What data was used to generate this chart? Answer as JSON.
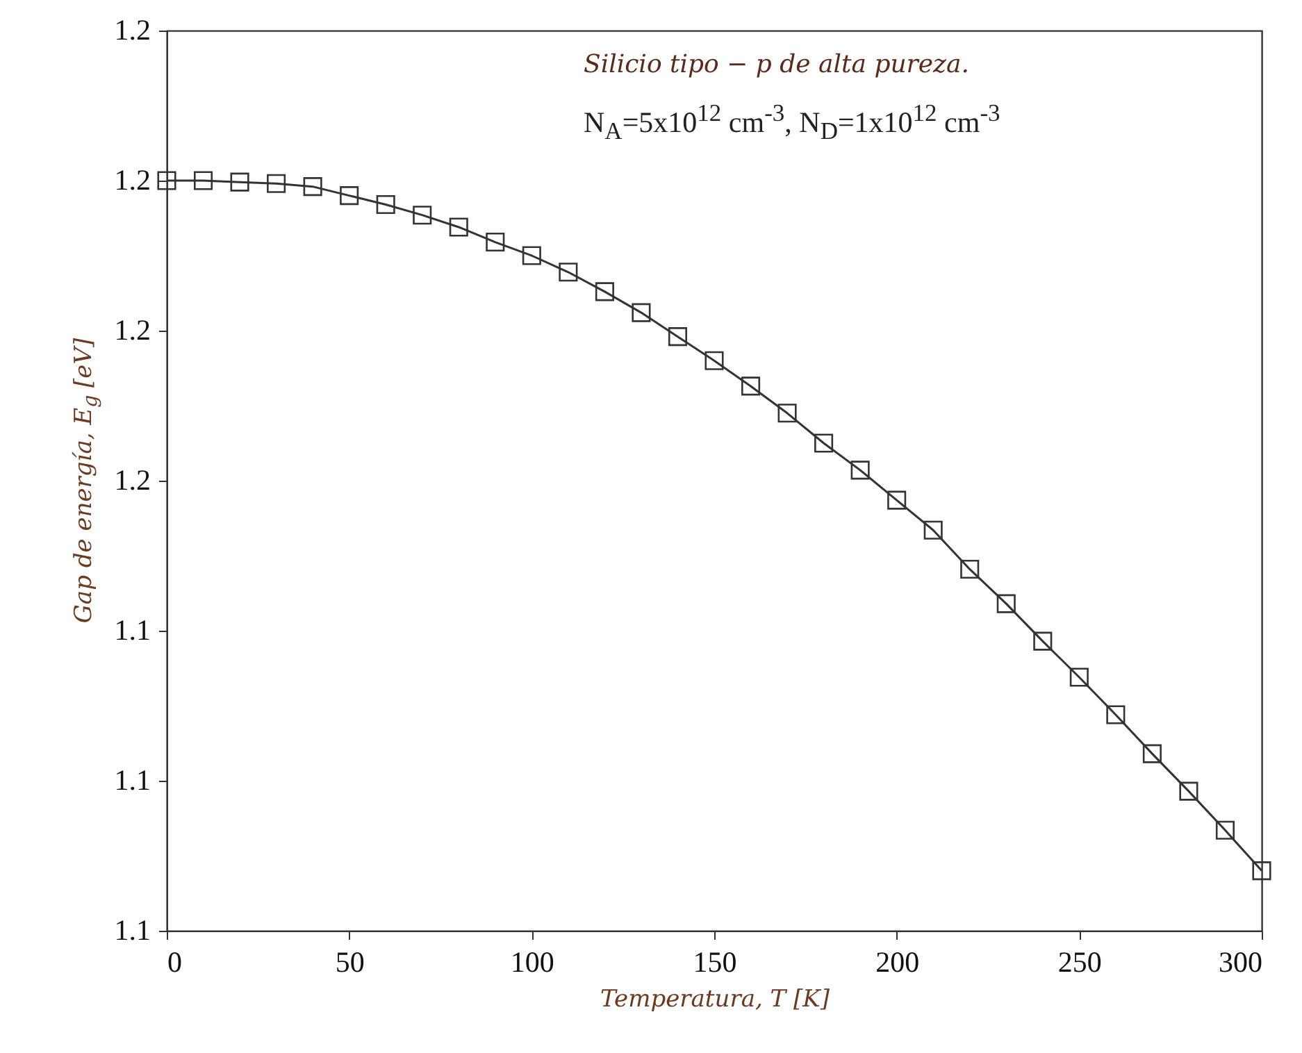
{
  "chart_data": {
    "type": "line",
    "xlabel": "Temperatura, T [K]",
    "ylabel": "Gap de energía, E$_{g}$ [eV]",
    "annotations": [
      "Silicio tipo − p de alta pureza.",
      "N$_{A}$=5x10$^{12}$ cm$^{-3}$, N$_{D}$=1x10$^{12}$ cm$^{-3}$"
    ],
    "x": [
      0,
      10,
      20,
      30,
      40,
      50,
      60,
      70,
      80,
      90,
      100,
      110,
      120,
      130,
      140,
      150,
      160,
      170,
      180,
      190,
      200,
      210,
      220,
      230,
      240,
      250,
      260,
      270,
      280,
      290,
      300
    ],
    "series": [
      {
        "color": "#333333",
        "values": [
          1.17,
          1.17,
          1.1699,
          1.1698,
          1.1696,
          1.169,
          1.1684,
          1.1677,
          1.1669,
          1.1659,
          1.165,
          1.1639,
          1.1626,
          1.1612,
          1.1596,
          1.158,
          1.1563,
          1.1545,
          1.1525,
          1.1507,
          1.1487,
          1.1467,
          1.1441,
          1.1418,
          1.1393,
          1.1369,
          1.1344,
          1.1318,
          1.1293,
          1.1267,
          1.124
        ]
      }
    ],
    "xlim": [
      0,
      300
    ],
    "xticks": [
      0,
      50,
      100,
      150,
      200,
      250,
      300
    ],
    "ylim": [
      1.12,
      1.18
    ],
    "yticks": [
      {
        "value": 1.12,
        "label": "1.1"
      },
      {
        "value": 1.13,
        "label": "1.1"
      },
      {
        "value": 1.14,
        "label": "1.1"
      },
      {
        "value": 1.15,
        "label": "1.2"
      },
      {
        "value": 1.16,
        "label": "1.2"
      },
      {
        "value": 1.17,
        "label": "1.2"
      },
      {
        "value": 1.18,
        "label": "1.2"
      }
    ],
    "marker": "square",
    "line_style": "solid",
    "grid": false
  }
}
